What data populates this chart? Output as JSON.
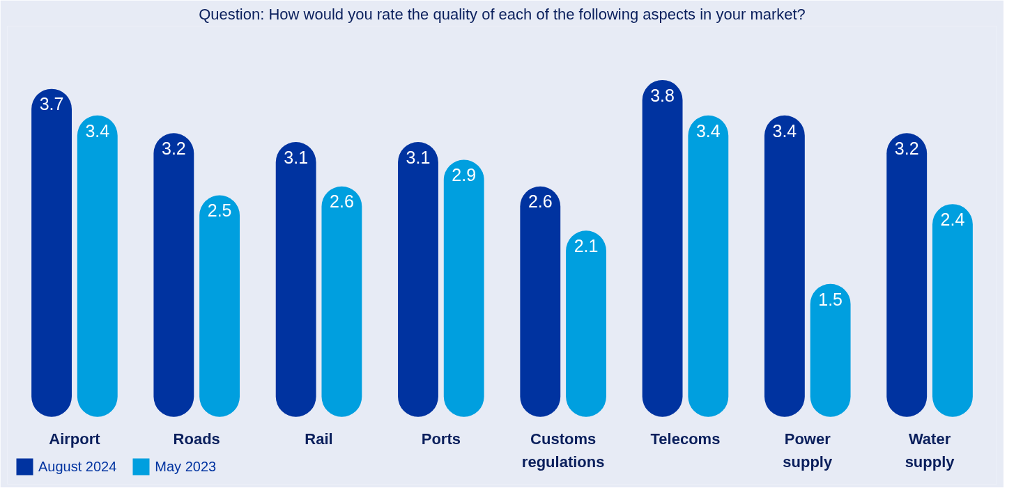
{
  "chart_data": {
    "type": "bar",
    "title": "Question: How would you rate the quality of each of the following aspects in your market?",
    "categories": [
      "Airport",
      "Roads",
      "Rail",
      "Ports",
      "Customs\nregulations",
      "Telecoms",
      "Power\nsupply",
      "Water\nsupply"
    ],
    "series": [
      {
        "name": "August 2024",
        "color": "#0033a0",
        "values": [
          3.7,
          3.2,
          3.1,
          3.1,
          2.6,
          3.8,
          3.4,
          3.2
        ]
      },
      {
        "name": "May 2023",
        "color": "#009fdf",
        "values": [
          3.4,
          2.5,
          2.6,
          2.9,
          2.1,
          3.4,
          1.5,
          2.4
        ]
      }
    ],
    "data_labels": true,
    "legend": "bottom left",
    "grid": false
  }
}
